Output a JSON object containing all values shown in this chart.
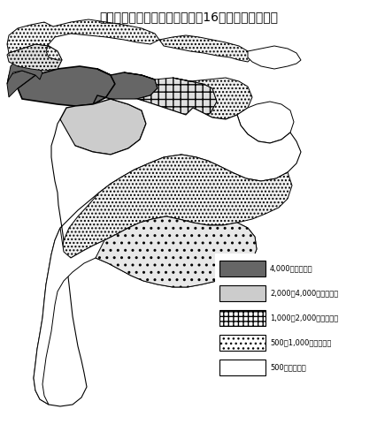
{
  "title": "図６　市町村別人口密度（平成16年１月１日現在）",
  "title_fontsize": 10,
  "legend_items": [
    {
      "label": "4,000人／　以上",
      "facecolor": "#666666",
      "hatch": null
    },
    {
      "label": "2,000〜4,000人／　未満",
      "facecolor": "#cccccc",
      "hatch": null
    },
    {
      "label": "1,000〜2,000人／　未満",
      "facecolor": "#ffffff",
      "hatch": "+++"
    },
    {
      "label": "500〜1,000人／　未満",
      "facecolor": "#ffffff",
      "hatch": "..."
    },
    {
      "label": "500人／　未満",
      "facecolor": "#ffffff",
      "hatch": null
    }
  ],
  "background_color": "#ffffff",
  "map_edge_color": "#000000",
  "map_linewidth": 0.7,
  "fig_width": 4.26,
  "fig_height": 4.8,
  "dpi": 100
}
